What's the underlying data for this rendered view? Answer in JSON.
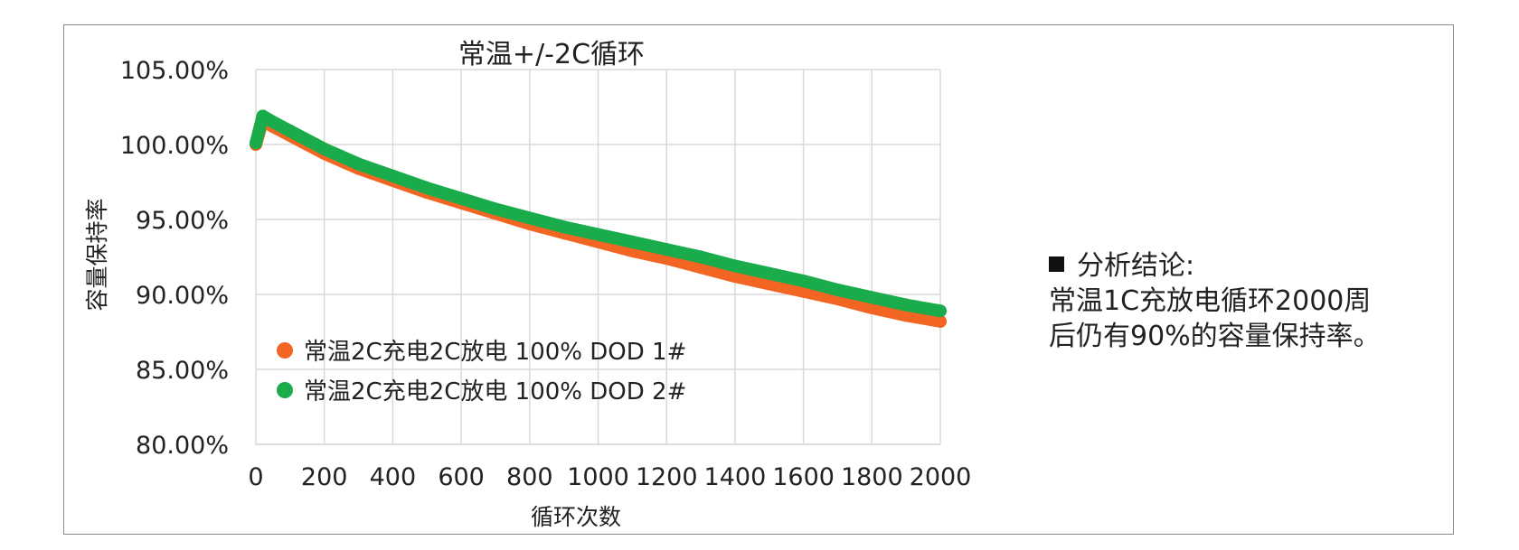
{
  "chart_data": {
    "type": "scatter",
    "title": "常温+/-2C循环",
    "xlabel": "循环次数",
    "ylabel": "容量保持率",
    "xlim": [
      0,
      2000
    ],
    "ylim": [
      0.8,
      1.05
    ],
    "x_ticks": [
      "0",
      "200",
      "400",
      "600",
      "800",
      "1000",
      "1200",
      "1400",
      "1600",
      "1800",
      "2000"
    ],
    "y_ticks": [
      "80.00%",
      "85.00%",
      "90.00%",
      "95.00%",
      "100.00%",
      "105.00%"
    ],
    "grid": true,
    "legend_position": "bottom-left",
    "series": [
      {
        "name": "常温2C充电2C放电 100% DOD 1#",
        "color": "#F26522",
        "x": [
          0,
          20,
          50,
          100,
          200,
          300,
          400,
          500,
          600,
          700,
          800,
          900,
          1000,
          1100,
          1200,
          1300,
          1400,
          1500,
          1600,
          1700,
          1800,
          1900,
          2000
        ],
        "y": [
          1.0,
          1.016,
          1.012,
          1.006,
          0.994,
          0.984,
          0.976,
          0.968,
          0.961,
          0.954,
          0.947,
          0.941,
          0.935,
          0.929,
          0.924,
          0.918,
          0.912,
          0.907,
          0.902,
          0.897,
          0.891,
          0.886,
          0.882
        ]
      },
      {
        "name": "常温2C充电2C放电 100% DOD 2#",
        "color": "#1AAB4B",
        "x": [
          0,
          20,
          50,
          100,
          200,
          300,
          400,
          500,
          600,
          700,
          800,
          900,
          1000,
          1100,
          1200,
          1300,
          1400,
          1500,
          1600,
          1700,
          1800,
          1900,
          2000
        ],
        "y": [
          1.001,
          1.019,
          1.015,
          1.009,
          0.997,
          0.987,
          0.979,
          0.971,
          0.964,
          0.957,
          0.951,
          0.945,
          0.94,
          0.935,
          0.93,
          0.925,
          0.919,
          0.914,
          0.909,
          0.903,
          0.898,
          0.893,
          0.889
        ]
      }
    ]
  },
  "conclusion": {
    "heading": "分析结论:",
    "line1": "常温1C充放电循环2000周",
    "line2": "后仍有90%的容量保持率。"
  }
}
